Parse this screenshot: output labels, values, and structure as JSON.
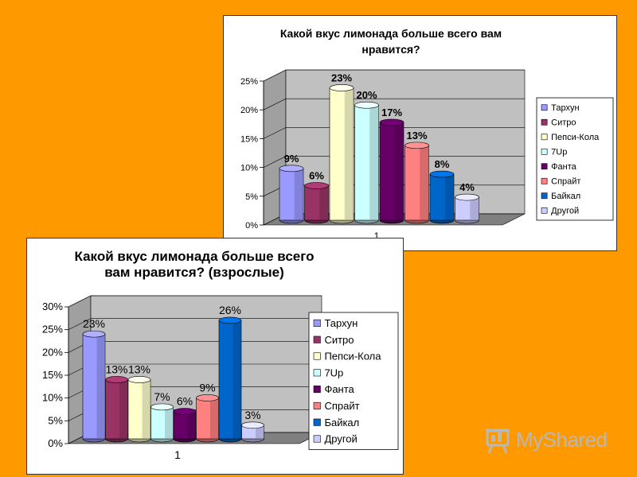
{
  "chart_data": [
    {
      "type": "bar",
      "title_lines": [
        "Какой вкус лимонада больше всего вам",
        "нравится?"
      ],
      "categories": [
        "1"
      ],
      "series": [
        {
          "name": "Тархун",
          "value": 9,
          "label": "9%",
          "color": "#9999FF"
        },
        {
          "name": "Ситро",
          "value": 6,
          "label": "6%",
          "color": "#993366"
        },
        {
          "name": "Пепси-Кола",
          "value": 23,
          "label": "23%",
          "color": "#FFFFCC"
        },
        {
          "name": "7Up",
          "value": 20,
          "label": "20%",
          "color": "#CCFFFF"
        },
        {
          "name": "Фанта",
          "value": 17,
          "label": "17%",
          "color": "#660066"
        },
        {
          "name": "Спрайт",
          "value": 13,
          "label": "13%",
          "color": "#FF8080"
        },
        {
          "name": "Байкал",
          "value": 8,
          "label": "8%",
          "color": "#0066CC"
        },
        {
          "name": "Другой",
          "value": 4,
          "label": "4%",
          "color": "#CCCCFF"
        }
      ],
      "y_ticks": [
        "0%",
        "5%",
        "10%",
        "15%",
        "20%",
        "25%"
      ],
      "ylim": [
        0,
        25
      ],
      "legend": "right",
      "data_labels_bold": true
    },
    {
      "type": "bar",
      "title_lines": [
        "Какой вкус лимонада больше всего",
        "вам нравится? (взрослые)"
      ],
      "categories": [
        "1"
      ],
      "series": [
        {
          "name": "Тархун",
          "value": 23,
          "label": "23%",
          "color": "#9999FF"
        },
        {
          "name": "Ситро",
          "value": 13,
          "label": "13%",
          "color": "#993366"
        },
        {
          "name": "Пепси-Кола",
          "value": 13,
          "label": "13%",
          "color": "#FFFFCC"
        },
        {
          "name": "7Up",
          "value": 7,
          "label": "7%",
          "color": "#CCFFFF"
        },
        {
          "name": "Фанта",
          "value": 6,
          "label": "6%",
          "color": "#660066"
        },
        {
          "name": "Спрайт",
          "value": 9,
          "label": "9%",
          "color": "#FF8080"
        },
        {
          "name": "Байкал",
          "value": 26,
          "label": "26%",
          "color": "#0066CC"
        },
        {
          "name": "Другой",
          "value": 3,
          "label": "3%",
          "color": "#CCCCFF"
        }
      ],
      "y_ticks": [
        "0%",
        "5%",
        "10%",
        "15%",
        "20%",
        "25%",
        "30%"
      ],
      "ylim": [
        0,
        30
      ],
      "legend": "right",
      "data_labels_bold": false
    }
  ],
  "watermark": {
    "text": "MyShared",
    "icon": "presentation-board-icon"
  },
  "colors": {
    "background": "#FF9900",
    "plot_wall": "#C0C0C0",
    "plot_floor": "#808080"
  }
}
